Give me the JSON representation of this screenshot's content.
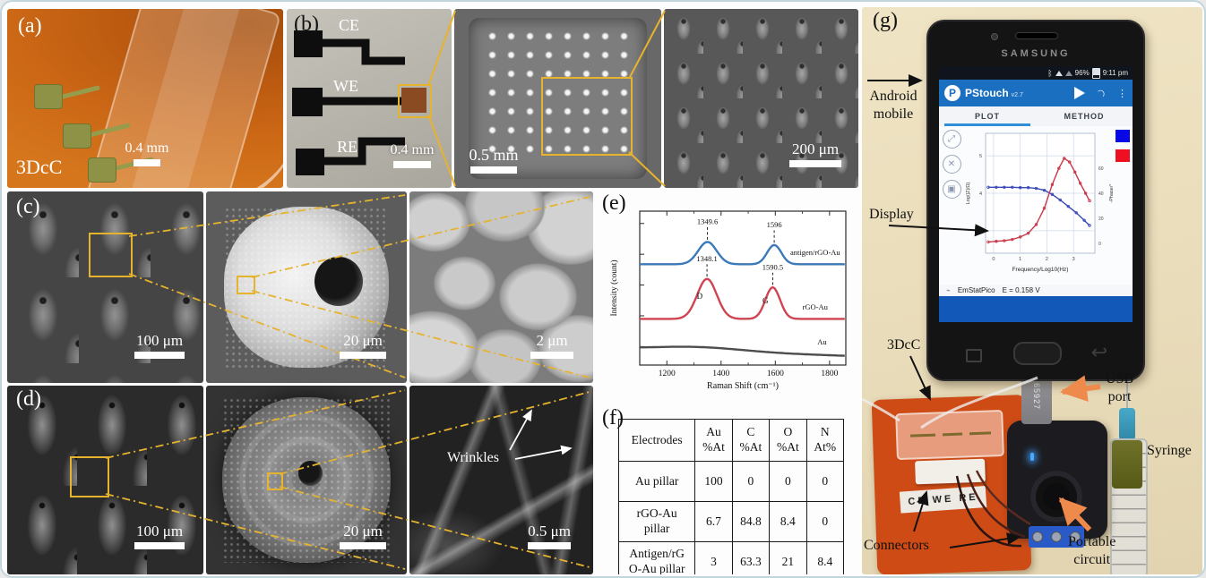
{
  "figure": {
    "a": {
      "tag": "(a)",
      "device_name": "3DcC",
      "scale_bar": "0.4 mm"
    },
    "b": {
      "tag": "(b)",
      "labels": {
        "ce": "CE",
        "we": "WE",
        "re": "RE"
      },
      "scale_bar": "0.4 mm"
    },
    "b_zoom_mid": {
      "scale_bar": "0.5 mm"
    },
    "b_zoom_right": {
      "scale_bar": "200 μm"
    },
    "c": {
      "tag": "(c)",
      "scale_bar_1": "100 μm",
      "scale_bar_2": "20 μm",
      "scale_bar_3": "2 μm"
    },
    "d": {
      "tag": "(d)",
      "scale_bar_1": "100 μm",
      "scale_bar_2": "20 μm",
      "scale_bar_3": "0.5 μm",
      "annotation": "Wrinkles"
    },
    "e": {
      "tag": "(e)"
    },
    "f": {
      "tag": "(f)",
      "headers": [
        "Electrodes",
        "Au\n%At",
        "C\n%At",
        "O\n%At",
        "N\nAt%"
      ],
      "rows": [
        [
          "Au pillar",
          "100",
          "0",
          "0",
          "0"
        ],
        [
          "rGO-Au\npillar",
          "6.7",
          "84.8",
          "8.4",
          "0"
        ],
        [
          "Antigen/rG\nO-Au pillar",
          "3",
          "63.3",
          "21",
          "8.4"
        ]
      ]
    },
    "g": {
      "tag": "(g)",
      "annotations": {
        "android": "Android\nmobile",
        "display": "Display",
        "dcc": "3DcC",
        "usb": "USB\nport",
        "syringe": "Syringe",
        "connectors": "Connectors",
        "portable": "Portable\ncircuit"
      },
      "board": {
        "connector_text": "CE WE RE"
      },
      "usb_tag": "65927",
      "phone": {
        "brand": "SAMSUNG",
        "status_bar": {
          "battery": "96%",
          "time": "9:11 pm",
          "icons": [
            "bluetooth-icon",
            "wifi-icon",
            "signal-icon",
            "battery-icon"
          ]
        },
        "app_bar": {
          "name": "PStouch",
          "version": "v2.7",
          "icons": [
            "play-icon",
            "signal-icon",
            "overflow-menu-icon"
          ]
        },
        "tabs": {
          "plot": "PLOT",
          "method": "METHOD"
        },
        "tool_icons": [
          "fullscreen-icon",
          "tools-icon",
          "save-icon"
        ],
        "footer": {
          "device": "EmStatPico",
          "potential": "E = 0.158 V"
        },
        "legend_colors": {
          "blue": "#0808e6",
          "red": "#ee1020"
        }
      }
    }
  },
  "chart_data": [
    {
      "id": "raman",
      "type": "line",
      "title": "",
      "xlabel": "Raman Shift (cm⁻¹)",
      "ylabel": "Intensity (count)",
      "xlim": [
        1100,
        1860
      ],
      "xticks": [
        1200,
        1400,
        1600,
        1800
      ],
      "grid": false,
      "legend_position": "inline-right",
      "series": [
        {
          "name": "antigen/rGO-Au",
          "color": "#3a7ab8",
          "baseline": 0.655,
          "label_pos": [
            1655,
            0.715
          ],
          "peaks": [
            {
              "center": 1349.6,
              "height": 0.145,
              "width": 34,
              "label": "1349.6"
            },
            {
              "center": 1596,
              "height": 0.125,
              "width": 26,
              "label": "1596"
            }
          ]
        },
        {
          "name": "rGO-Au",
          "color": "#cf4450",
          "baseline": 0.3,
          "label_pos": [
            1700,
            0.36
          ],
          "peaks": [
            {
              "center": 1348.1,
              "height": 0.26,
              "width": 36,
              "label": "1348.1",
              "letter": "D"
            },
            {
              "center": 1590.5,
              "height": 0.205,
              "width": 27,
              "label": "1590.5",
              "letter": "G"
            }
          ]
        },
        {
          "name": "Au",
          "color": "#4d4d4d",
          "baseline": 0.105,
          "slope": -0.045,
          "label_pos": [
            1755,
            0.135
          ],
          "peaks": [
            {
              "center": 1320,
              "height": 0.025,
              "width": 160
            }
          ]
        }
      ]
    },
    {
      "id": "bode",
      "type": "line",
      "xlabel": "Frequency/Log10(Hz)",
      "ylabel_left": "Log(|Z|/Ω)",
      "ylabel_right": "-Phase/°",
      "xlim": [
        -0.3,
        3.8
      ],
      "xticks": [
        0,
        1,
        2,
        3
      ],
      "ylim_left": [
        2.4,
        5.6
      ],
      "yticks_left": [
        3,
        4,
        5
      ],
      "ylim_right": [
        -8,
        88
      ],
      "yticks_right": [
        0,
        20,
        40,
        60
      ],
      "grid": true,
      "series": [
        {
          "name": "log-impedance",
          "axis": "left",
          "color": "#3848b8",
          "points": [
            [
              -0.2,
              4.16
            ],
            [
              0.1,
              4.16
            ],
            [
              0.4,
              4.16
            ],
            [
              0.7,
              4.16
            ],
            [
              1.0,
              4.15
            ],
            [
              1.3,
              4.15
            ],
            [
              1.6,
              4.13
            ],
            [
              1.9,
              4.08
            ],
            [
              2.2,
              3.97
            ],
            [
              2.5,
              3.82
            ],
            [
              2.8,
              3.65
            ],
            [
              3.1,
              3.48
            ],
            [
              3.4,
              3.28
            ],
            [
              3.6,
              3.14
            ]
          ]
        },
        {
          "name": "neg-phase",
          "axis": "right",
          "color": "#c83848",
          "points": [
            [
              -0.2,
              1
            ],
            [
              0.1,
              1.5
            ],
            [
              0.4,
              2
            ],
            [
              0.7,
              3
            ],
            [
              1.0,
              5
            ],
            [
              1.3,
              8
            ],
            [
              1.6,
              15
            ],
            [
              1.9,
              28
            ],
            [
              2.2,
              47
            ],
            [
              2.45,
              60
            ],
            [
              2.65,
              68
            ],
            [
              2.85,
              65
            ],
            [
              3.05,
              57
            ],
            [
              3.25,
              48
            ],
            [
              3.45,
              40
            ],
            [
              3.6,
              34
            ]
          ]
        }
      ]
    }
  ]
}
